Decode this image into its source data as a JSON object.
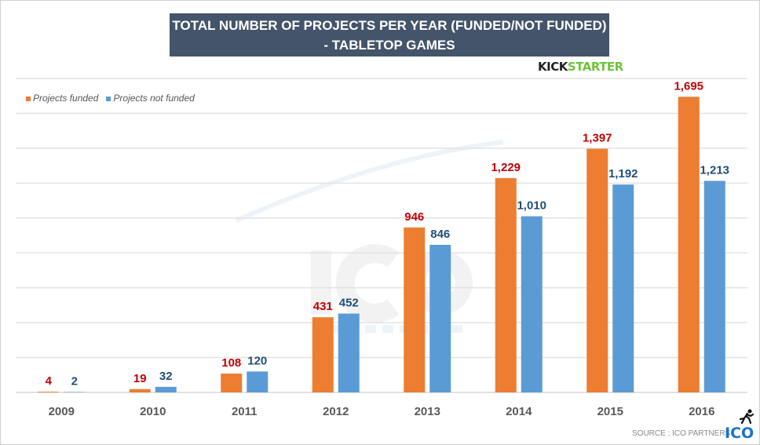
{
  "chart_data": {
    "type": "bar",
    "title": "TOTAL NUMBER OF PROJECTS PER YEAR (FUNDED/NOT FUNDED)",
    "subtitle": "- TABLETOP GAMES",
    "categories": [
      "2009",
      "2010",
      "2011",
      "2012",
      "2013",
      "2014",
      "2015",
      "2016"
    ],
    "series": [
      {
        "name": "Projects funded",
        "color": "#ed7d31",
        "label_color": "#c00000",
        "values": [
          4,
          19,
          108,
          431,
          946,
          1229,
          1397,
          1695
        ],
        "labels": [
          "4",
          "19",
          "108",
          "431",
          "946",
          "1,229",
          "1,397",
          "1,695"
        ]
      },
      {
        "name": "Projects not funded",
        "color": "#5b9bd5",
        "label_color": "#1f4e79",
        "values": [
          2,
          32,
          120,
          452,
          846,
          1010,
          1192,
          1213
        ],
        "labels": [
          "2",
          "32",
          "120",
          "452",
          "846",
          "1,010",
          "1,192",
          "1,213"
        ]
      }
    ],
    "ylim": [
      0,
      1800
    ],
    "ytick_step": 200,
    "grid": true,
    "legend": "top-left",
    "title_bg": "#44546a"
  },
  "branding": {
    "kick": "KICK",
    "starter": "STARTER",
    "source": "SOURCE : ICO PARTNERS",
    "ico": "ICO",
    "watermark": "ICO",
    "watermark_sub": "PARTNERS"
  }
}
